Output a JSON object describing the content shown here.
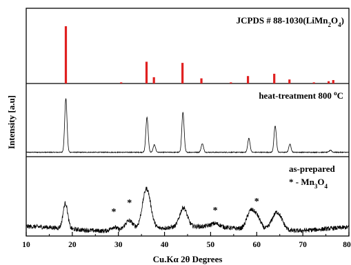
{
  "chart_data": {
    "type": "line",
    "xlabel": "Cu.Kα 2θ Degrees",
    "ylabel": "Intensity [a.u]",
    "xlim": [
      10,
      80
    ],
    "x_ticks": [
      "10",
      "20",
      "30",
      "40",
      "50",
      "60",
      "70",
      "80"
    ],
    "colors": {
      "reference_bars": "#e02020",
      "pattern": "#000000"
    },
    "panels": [
      {
        "kind": "reference_bars",
        "label_main": "JCPDS # 88-1030(LiMn",
        "label_sub1": "2",
        "label_mid": "O",
        "label_sub2": "4",
        "label_end": ")",
        "peaks": [
          {
            "x": 18.6,
            "y": 100
          },
          {
            "x": 30.6,
            "y": 2
          },
          {
            "x": 36.1,
            "y": 38
          },
          {
            "x": 37.7,
            "y": 11
          },
          {
            "x": 43.9,
            "y": 36
          },
          {
            "x": 48.0,
            "y": 9
          },
          {
            "x": 54.4,
            "y": 2
          },
          {
            "x": 58.1,
            "y": 13
          },
          {
            "x": 63.8,
            "y": 17
          },
          {
            "x": 67.1,
            "y": 7
          },
          {
            "x": 72.4,
            "y": 2
          },
          {
            "x": 75.6,
            "y": 4
          },
          {
            "x": 76.6,
            "y": 6
          }
        ]
      },
      {
        "kind": "pattern",
        "label_main": "heat-treatment 800 ",
        "label_sup": "o",
        "label_end": "C",
        "peaks": [
          {
            "x": 18.6,
            "y": 100,
            "w": 0.25
          },
          {
            "x": 36.2,
            "y": 65,
            "w": 0.25
          },
          {
            "x": 37.8,
            "y": 14,
            "w": 0.25
          },
          {
            "x": 44.0,
            "y": 74,
            "w": 0.25
          },
          {
            "x": 48.2,
            "y": 16,
            "w": 0.25
          },
          {
            "x": 58.3,
            "y": 26,
            "w": 0.25
          },
          {
            "x": 64.0,
            "y": 49,
            "w": 0.25
          },
          {
            "x": 67.2,
            "y": 15,
            "w": 0.25
          },
          {
            "x": 76.0,
            "y": 4,
            "w": 0.25
          }
        ]
      },
      {
        "kind": "pattern_noisy",
        "label_line1": "as-prepared",
        "label_line2_main": "* - Mn",
        "label_line2_sub1": "3",
        "label_line2_mid": "O",
        "label_line2_sub2": "4",
        "asterisk": "*",
        "asterisk_x": [
          29,
          32.4,
          51,
          60
        ],
        "peaks": [
          {
            "x": 18.5,
            "y": 45,
            "w": 0.5
          },
          {
            "x": 29.0,
            "y": 7,
            "w": 0.7
          },
          {
            "x": 32.3,
            "y": 17,
            "w": 0.9
          },
          {
            "x": 36.1,
            "y": 72,
            "w": 0.9
          },
          {
            "x": 44.1,
            "y": 34,
            "w": 0.8
          },
          {
            "x": 51.0,
            "y": 6,
            "w": 1.0
          },
          {
            "x": 58.6,
            "y": 30,
            "w": 0.8
          },
          {
            "x": 60.1,
            "y": 22,
            "w": 0.8
          },
          {
            "x": 64.4,
            "y": 33,
            "w": 1.1
          }
        ]
      }
    ]
  }
}
